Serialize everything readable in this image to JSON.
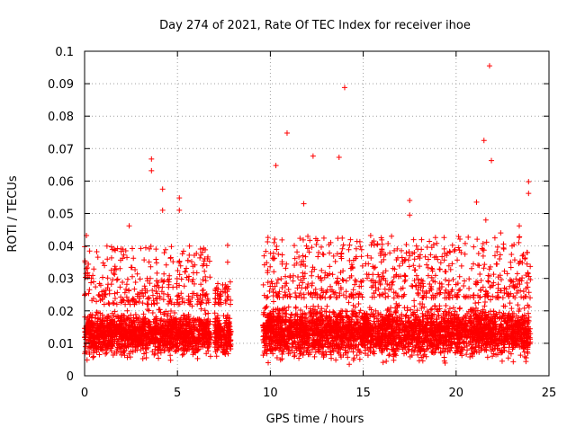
{
  "chart_data": {
    "type": "scatter",
    "title": "Day 274 of 2021, Rate Of TEC Index for receiver ihoe",
    "xlabel": "GPS time / hours",
    "ylabel": "ROTI / TECUs",
    "xlim": [
      0,
      25
    ],
    "ylim": [
      0,
      0.1
    ],
    "xticks": [
      "0",
      "5",
      "10",
      "15",
      "20",
      "25"
    ],
    "yticks": [
      "0",
      "0.01",
      "0.02",
      "0.03",
      "0.04",
      "0.05",
      "0.06",
      "0.07",
      "0.08",
      "0.09",
      "0.1"
    ],
    "grid": true,
    "marker": "+",
    "color": "#ff0000",
    "data_gap_hours": [
      8.0,
      9.6
    ],
    "notable_points": [
      {
        "x": 21.8,
        "y": 0.0955
      },
      {
        "x": 14.0,
        "y": 0.0888
      },
      {
        "x": 10.9,
        "y": 0.0748
      },
      {
        "x": 21.5,
        "y": 0.0725
      },
      {
        "x": 13.7,
        "y": 0.0673
      },
      {
        "x": 12.3,
        "y": 0.0677
      },
      {
        "x": 3.6,
        "y": 0.0668
      },
      {
        "x": 21.9,
        "y": 0.0663
      },
      {
        "x": 10.3,
        "y": 0.0648
      },
      {
        "x": 3.6,
        "y": 0.0632
      },
      {
        "x": 23.9,
        "y": 0.0598
      },
      {
        "x": 4.2,
        "y": 0.0575
      },
      {
        "x": 23.9,
        "y": 0.0562
      },
      {
        "x": 5.1,
        "y": 0.0548
      },
      {
        "x": 17.5,
        "y": 0.054
      },
      {
        "x": 21.1,
        "y": 0.0535
      },
      {
        "x": 11.8,
        "y": 0.053
      },
      {
        "x": 5.1,
        "y": 0.051
      },
      {
        "x": 4.2,
        "y": 0.051
      },
      {
        "x": 17.5,
        "y": 0.0495
      },
      {
        "x": 21.6,
        "y": 0.048
      },
      {
        "x": 2.4,
        "y": 0.0462
      },
      {
        "x": 23.4,
        "y": 0.0462
      },
      {
        "x": 22.4,
        "y": 0.044
      },
      {
        "x": 0.1,
        "y": 0.0432
      },
      {
        "x": 15.4,
        "y": 0.0432
      },
      {
        "x": 7.7,
        "y": 0.0402
      },
      {
        "x": 7.7,
        "y": 0.035
      }
    ],
    "series": [
      {
        "segments": [
          {
            "x0": 0.0,
            "x1": 6.8,
            "base": [
              0.004,
              0.022
            ],
            "spread": [
              0.022,
              0.04
            ]
          },
          {
            "x0": 7.0,
            "x1": 7.9,
            "base": [
              0.003,
              0.022
            ],
            "spread": [
              0.022,
              0.03
            ]
          },
          {
            "x0": 9.6,
            "x1": 24.0,
            "base": [
              0.003,
              0.024
            ],
            "spread": [
              0.024,
              0.043
            ]
          }
        ]
      }
    ]
  }
}
